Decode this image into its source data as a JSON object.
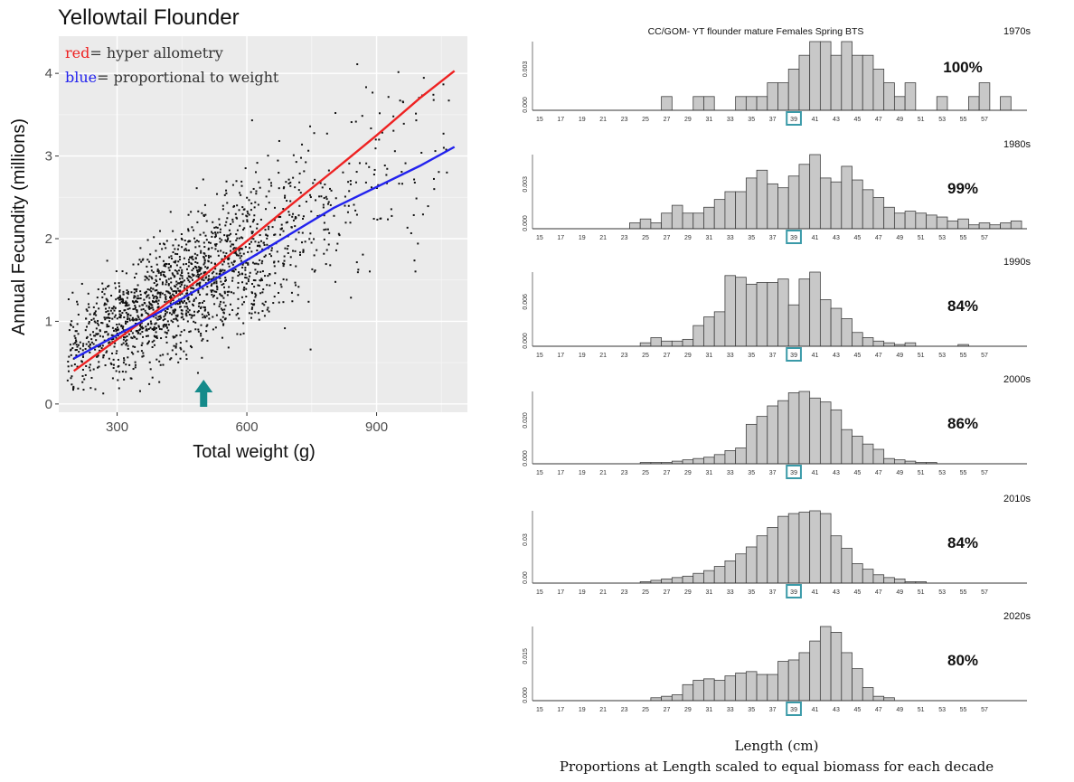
{
  "chart_data": [
    {
      "type": "scatter",
      "title": "Yellowtail Flounder",
      "xlabel": "Total weight (g)",
      "ylabel": "Annual Fecundity (millions)",
      "xlim": [
        165,
        1110
      ],
      "ylim": [
        -0.1,
        4.45
      ],
      "xticks": [
        "300",
        "600",
        "900"
      ],
      "yticks": [
        "0",
        "1",
        "2",
        "3",
        "4"
      ],
      "grid": true,
      "legend_placement": "top-left",
      "legend": [
        {
          "key": "red",
          "text": "= hyper allometry",
          "color": "#ee2222"
        },
        {
          "key": "blue",
          "text": "= proportional to weight",
          "color": "#2222ee"
        }
      ],
      "series": [
        {
          "name": "red",
          "kind": "line",
          "color": "#ee2222",
          "x": [
            200,
            300,
            400,
            500,
            600,
            700,
            800,
            900,
            1000,
            1080
          ],
          "y": [
            0.4,
            0.78,
            1.16,
            1.55,
            1.97,
            2.4,
            2.82,
            3.25,
            3.7,
            4.03
          ]
        },
        {
          "name": "blue",
          "kind": "line",
          "color": "#2222ee",
          "x": [
            200,
            400,
            600,
            800,
            1000,
            1080
          ],
          "y": [
            0.55,
            1.12,
            1.74,
            2.37,
            2.88,
            3.11
          ]
        }
      ],
      "points": {
        "count": 1900,
        "color": "#111111",
        "center_x": 430,
        "sigma_x": 170,
        "intercept": 0.08,
        "slope": 0.0029,
        "noise": 0.38
      },
      "annotation": {
        "kind": "arrow",
        "x": 500,
        "color": "#148a8a"
      }
    },
    {
      "type": "bar",
      "title": "CC/GOM- YT flounder mature Females Spring BTS",
      "xlabel": "Length (cm)",
      "note": "Proportions at Length scaled to equal biomass for each decade",
      "highlight_bin": "39",
      "highlight_color": "#3a9aa8",
      "bin_labels": [
        "15",
        "17",
        "19",
        "21",
        "23",
        "25",
        "27",
        "29",
        "31",
        "33",
        "35",
        "37",
        "39",
        "41",
        "43",
        "45",
        "47",
        "49",
        "51",
        "53",
        "55",
        "57"
      ],
      "panels": [
        {
          "decade": "1970s",
          "percent": "100%",
          "ytick_labels": [
            "0.000",
            "0.003"
          ],
          "values": [
            0,
            0,
            0,
            0,
            0,
            0,
            0,
            0,
            0,
            0,
            0,
            0,
            1,
            0,
            0,
            1,
            1,
            0,
            0,
            1,
            1,
            1,
            2,
            2,
            3,
            4,
            5,
            5,
            4,
            5,
            4,
            4,
            3,
            2,
            1,
            2,
            0,
            0,
            1,
            0,
            0,
            1,
            2,
            0,
            1,
            0
          ]
        },
        {
          "decade": "1980s",
          "percent": "99%",
          "ytick_labels": [
            "0.000",
            "0.003"
          ],
          "values": [
            0,
            0,
            0,
            0,
            0,
            0,
            0,
            0,
            0,
            0.3,
            0.5,
            0.3,
            0.8,
            1.2,
            0.8,
            0.8,
            1.1,
            1.5,
            1.9,
            1.9,
            2.6,
            3,
            2.3,
            2.1,
            2.7,
            3.3,
            3.8,
            2.6,
            2.4,
            3.2,
            2.5,
            2.0,
            1.6,
            1.1,
            0.8,
            0.9,
            0.8,
            0.7,
            0.6,
            0.4,
            0.5,
            0.2,
            0.3,
            0.2,
            0.3,
            0.4
          ]
        },
        {
          "decade": "1990s",
          "percent": "84%",
          "ytick_labels": [
            "0.000",
            "0.006"
          ],
          "values": [
            0,
            0,
            0,
            0,
            0,
            0,
            0,
            0,
            0,
            0,
            0.2,
            0.5,
            0.3,
            0.3,
            0.4,
            1.2,
            1.7,
            2.0,
            4.1,
            4.0,
            3.6,
            3.7,
            3.7,
            3.9,
            2.4,
            3.9,
            4.3,
            2.7,
            2.2,
            1.6,
            0.8,
            0.5,
            0.3,
            0.2,
            0.1,
            0.2,
            0,
            0,
            0,
            0,
            0.1,
            0,
            0,
            0,
            0,
            0
          ]
        },
        {
          "decade": "2000s",
          "percent": "86%",
          "ytick_labels": [
            "0.000",
            "0.020"
          ],
          "values": [
            0,
            0,
            0,
            0,
            0,
            0,
            0,
            0,
            0,
            0,
            0.1,
            0.1,
            0.1,
            0.2,
            0.3,
            0.4,
            0.5,
            0.7,
            1.0,
            1.2,
            3.0,
            3.6,
            4.4,
            4.8,
            5.4,
            5.5,
            5.0,
            4.7,
            4.1,
            2.6,
            2.1,
            1.5,
            1.1,
            0.4,
            0.3,
            0.2,
            0.1,
            0.1,
            0,
            0,
            0,
            0,
            0,
            0,
            0,
            0
          ]
        },
        {
          "decade": "2010s",
          "percent": "84%",
          "ytick_labels": [
            "0.00",
            "0.03"
          ],
          "values": [
            0,
            0,
            0,
            0,
            0,
            0,
            0,
            0,
            0,
            0,
            0.1,
            0.2,
            0.3,
            0.4,
            0.5,
            0.7,
            0.9,
            1.2,
            1.6,
            2.1,
            2.6,
            3.4,
            4.0,
            4.8,
            5.0,
            5.1,
            5.2,
            5.0,
            3.4,
            2.5,
            1.4,
            1.0,
            0.6,
            0.4,
            0.3,
            0.1,
            0.1,
            0,
            0,
            0,
            0,
            0,
            0,
            0,
            0,
            0
          ]
        },
        {
          "decade": "2020s",
          "percent": "80%",
          "ytick_labels": [
            "0.000",
            "0.015"
          ],
          "values": [
            0,
            0,
            0,
            0,
            0,
            0,
            0,
            0,
            0,
            0,
            0,
            0.2,
            0.3,
            0.4,
            1.1,
            1.4,
            1.5,
            1.4,
            1.7,
            1.9,
            2.0,
            1.8,
            1.8,
            2.7,
            2.8,
            3.3,
            4.1,
            5.1,
            4.7,
            3.3,
            2.2,
            0.9,
            0.3,
            0.2,
            0,
            0,
            0,
            0,
            0,
            0,
            0,
            0,
            0,
            0,
            0,
            0
          ]
        }
      ]
    }
  ]
}
